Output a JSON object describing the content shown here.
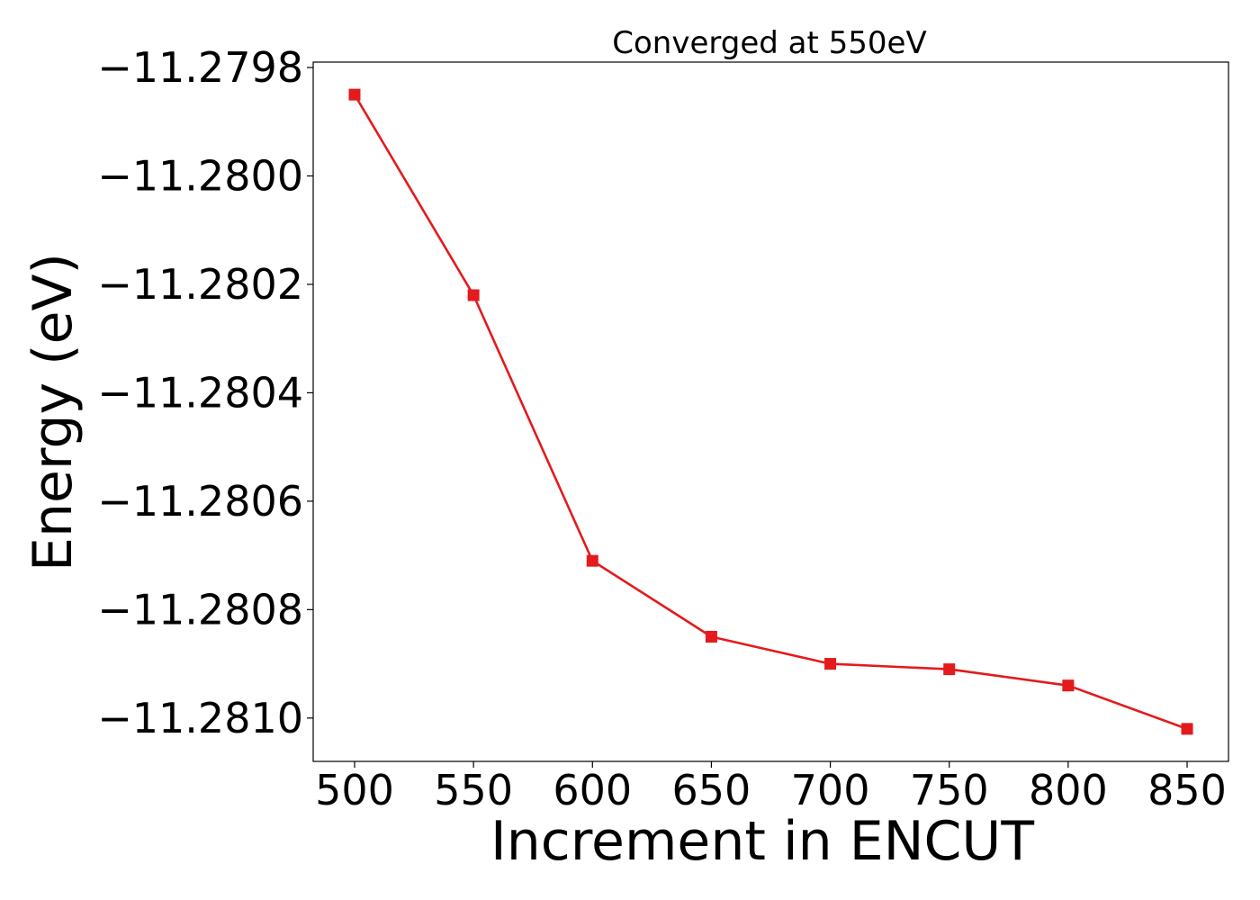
{
  "chart_data": {
    "type": "line",
    "title": "Converged at 550eV",
    "xlabel": "Increment in ENCUT",
    "ylabel": "Energy (eV)",
    "x": [
      500,
      550,
      600,
      650,
      700,
      750,
      800,
      850
    ],
    "series": [
      {
        "values": [
          -11.27985,
          -11.28022,
          -11.28071,
          -11.28085,
          -11.2809,
          -11.28091,
          -11.28094,
          -11.28102
        ],
        "color": "#e41a1c",
        "marker": "square"
      }
    ],
    "xticks": [
      500,
      550,
      600,
      650,
      700,
      750,
      800,
      850
    ],
    "xtick_labels": [
      "500",
      "550",
      "600",
      "650",
      "700",
      "750",
      "800",
      "850"
    ],
    "yticks": [
      -11.2798,
      -11.28,
      -11.2802,
      -11.2804,
      -11.2806,
      -11.2808,
      -11.281
    ],
    "ytick_labels": [
      "−11.2798",
      "−11.2800",
      "−11.2802",
      "−11.2804",
      "−11.2806",
      "−11.2808",
      "−11.2810"
    ],
    "xlim": [
      482.6,
      867.4
    ],
    "ylim": [
      -11.28108,
      -11.27979
    ],
    "grid": false,
    "legend": false
  }
}
